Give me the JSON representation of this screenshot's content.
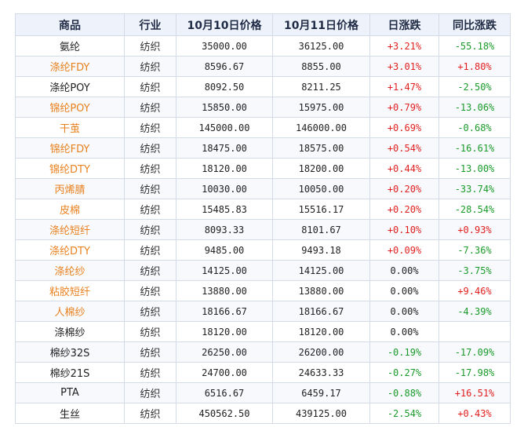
{
  "table": {
    "headers": [
      "商品",
      "行业",
      "10月10日价格",
      "10月11日价格",
      "日涨跌",
      "同比涨跌"
    ],
    "rows": [
      {
        "name": "氨纶",
        "name_style": "black",
        "industry": "纺织",
        "p1": "35000.00",
        "p2": "36125.00",
        "day": "+3.21%",
        "day_style": "red",
        "yoy": "-55.18%",
        "yoy_style": "green"
      },
      {
        "name": "涤纶FDY",
        "name_style": "orange",
        "industry": "纺织",
        "p1": "8596.67",
        "p2": "8855.00",
        "day": "+3.01%",
        "day_style": "red",
        "yoy": "+1.80%",
        "yoy_style": "red"
      },
      {
        "name": "涤纶POY",
        "name_style": "black",
        "industry": "纺织",
        "p1": "8092.50",
        "p2": "8211.25",
        "day": "+1.47%",
        "day_style": "red",
        "yoy": "-2.50%",
        "yoy_style": "green"
      },
      {
        "name": "锦纶POY",
        "name_style": "orange",
        "industry": "纺织",
        "p1": "15850.00",
        "p2": "15975.00",
        "day": "+0.79%",
        "day_style": "red",
        "yoy": "-13.06%",
        "yoy_style": "green"
      },
      {
        "name": "干茧",
        "name_style": "orange",
        "industry": "纺织",
        "p1": "145000.00",
        "p2": "146000.00",
        "day": "+0.69%",
        "day_style": "red",
        "yoy": "-0.68%",
        "yoy_style": "green"
      },
      {
        "name": "锦纶FDY",
        "name_style": "orange",
        "industry": "纺织",
        "p1": "18475.00",
        "p2": "18575.00",
        "day": "+0.54%",
        "day_style": "red",
        "yoy": "-16.61%",
        "yoy_style": "green"
      },
      {
        "name": "锦纶DTY",
        "name_style": "orange",
        "industry": "纺织",
        "p1": "18120.00",
        "p2": "18200.00",
        "day": "+0.44%",
        "day_style": "red",
        "yoy": "-13.00%",
        "yoy_style": "green"
      },
      {
        "name": "丙烯腈",
        "name_style": "orange",
        "industry": "纺织",
        "p1": "10030.00",
        "p2": "10050.00",
        "day": "+0.20%",
        "day_style": "red",
        "yoy": "-33.74%",
        "yoy_style": "green"
      },
      {
        "name": "皮棉",
        "name_style": "orange",
        "industry": "纺织",
        "p1": "15485.83",
        "p2": "15516.17",
        "day": "+0.20%",
        "day_style": "red",
        "yoy": "-28.54%",
        "yoy_style": "green"
      },
      {
        "name": "涤纶短纤",
        "name_style": "orange",
        "industry": "纺织",
        "p1": "8093.33",
        "p2": "8101.67",
        "day": "+0.10%",
        "day_style": "red",
        "yoy": "+0.93%",
        "yoy_style": "red"
      },
      {
        "name": "涤纶DTY",
        "name_style": "orange",
        "industry": "纺织",
        "p1": "9485.00",
        "p2": "9493.18",
        "day": "+0.09%",
        "day_style": "red",
        "yoy": "-7.36%",
        "yoy_style": "green"
      },
      {
        "name": "涤纶纱",
        "name_style": "orange",
        "industry": "纺织",
        "p1": "14125.00",
        "p2": "14125.00",
        "day": "0.00%",
        "day_style": "black",
        "yoy": "-3.75%",
        "yoy_style": "green"
      },
      {
        "name": "粘胶短纤",
        "name_style": "orange",
        "industry": "纺织",
        "p1": "13880.00",
        "p2": "13880.00",
        "day": "0.00%",
        "day_style": "black",
        "yoy": "+9.46%",
        "yoy_style": "red"
      },
      {
        "name": "人棉纱",
        "name_style": "orange",
        "industry": "纺织",
        "p1": "18166.67",
        "p2": "18166.67",
        "day": "0.00%",
        "day_style": "black",
        "yoy": "-4.39%",
        "yoy_style": "green"
      },
      {
        "name": "涤棉纱",
        "name_style": "black",
        "industry": "纺织",
        "p1": "18120.00",
        "p2": "18120.00",
        "day": "0.00%",
        "day_style": "black",
        "yoy": "",
        "yoy_style": "black"
      },
      {
        "name": "棉纱32S",
        "name_style": "black",
        "industry": "纺织",
        "p1": "26250.00",
        "p2": "26200.00",
        "day": "-0.19%",
        "day_style": "green",
        "yoy": "-17.09%",
        "yoy_style": "green"
      },
      {
        "name": "棉纱21S",
        "name_style": "black",
        "industry": "纺织",
        "p1": "24700.00",
        "p2": "24633.33",
        "day": "-0.27%",
        "day_style": "green",
        "yoy": "-17.98%",
        "yoy_style": "green"
      },
      {
        "name": "PTA",
        "name_style": "black",
        "industry": "纺织",
        "p1": "6516.67",
        "p2": "6459.17",
        "day": "-0.88%",
        "day_style": "green",
        "yoy": "+16.51%",
        "yoy_style": "red"
      },
      {
        "name": "生丝",
        "name_style": "black",
        "industry": "纺织",
        "p1": "450562.50",
        "p2": "439125.00",
        "day": "-2.54%",
        "day_style": "green",
        "yoy": "+0.43%",
        "yoy_style": "red"
      }
    ]
  }
}
